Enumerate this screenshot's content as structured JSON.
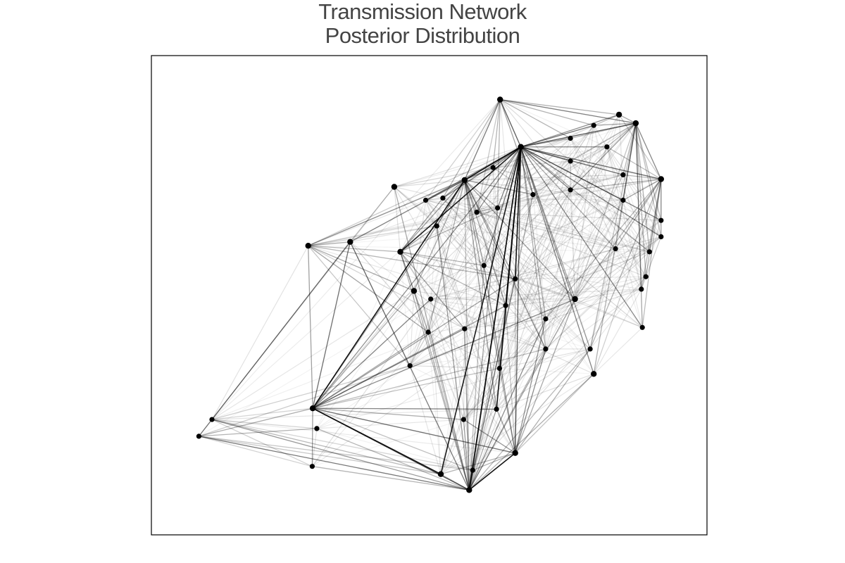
{
  "title": {
    "line1": "Transmission Network",
    "line2": "Posterior Distribution"
  },
  "chart_data": {
    "type": "network",
    "axes": "hidden",
    "grid": false,
    "legend": "none",
    "node_color": "#000000",
    "edge_color": "#000000",
    "x_range": [
      0,
      100
    ],
    "y_range": [
      0,
      100
    ],
    "nodes": [
      {
        "id": 1,
        "x": 64.0,
        "y": 95.5
      },
      {
        "id": 2,
        "x": 87.5,
        "y": 92.0
      },
      {
        "id": 3,
        "x": 90.8,
        "y": 90.0
      },
      {
        "id": 4,
        "x": 82.5,
        "y": 89.5
      },
      {
        "id": 5,
        "x": 77.9,
        "y": 86.5
      },
      {
        "id": 6,
        "x": 68.1,
        "y": 84.5
      },
      {
        "id": 7,
        "x": 85.1,
        "y": 84.5
      },
      {
        "id": 8,
        "x": 77.9,
        "y": 81.2
      },
      {
        "id": 9,
        "x": 62.6,
        "y": 79.7
      },
      {
        "id": 10,
        "x": 88.3,
        "y": 78.0
      },
      {
        "id": 11,
        "x": 95.8,
        "y": 77.0
      },
      {
        "id": 12,
        "x": 57.0,
        "y": 76.8
      },
      {
        "id": 13,
        "x": 43.1,
        "y": 75.2
      },
      {
        "id": 14,
        "x": 77.9,
        "y": 74.5
      },
      {
        "id": 15,
        "x": 70.5,
        "y": 73.4
      },
      {
        "id": 16,
        "x": 52.7,
        "y": 72.6
      },
      {
        "id": 17,
        "x": 49.3,
        "y": 72.1
      },
      {
        "id": 18,
        "x": 88.3,
        "y": 72.1
      },
      {
        "id": 19,
        "x": 63.5,
        "y": 70.3
      },
      {
        "id": 20,
        "x": 59.4,
        "y": 69.3
      },
      {
        "id": 21,
        "x": 95.8,
        "y": 67.4
      },
      {
        "id": 22,
        "x": 51.5,
        "y": 66.1
      },
      {
        "id": 23,
        "x": 95.8,
        "y": 63.6
      },
      {
        "id": 24,
        "x": 34.4,
        "y": 62.4
      },
      {
        "id": 25,
        "x": 26.1,
        "y": 61.5
      },
      {
        "id": 26,
        "x": 86.8,
        "y": 60.8
      },
      {
        "id": 27,
        "x": 44.3,
        "y": 60.1
      },
      {
        "id": 28,
        "x": 93.5,
        "y": 60.1
      },
      {
        "id": 29,
        "x": 60.8,
        "y": 56.9
      },
      {
        "id": 30,
        "x": 92.8,
        "y": 54.3
      },
      {
        "id": 31,
        "x": 67.0,
        "y": 53.8
      },
      {
        "id": 32,
        "x": 91.9,
        "y": 51.4
      },
      {
        "id": 33,
        "x": 47.0,
        "y": 51.0
      },
      {
        "id": 34,
        "x": 50.3,
        "y": 49.1
      },
      {
        "id": 35,
        "x": 78.8,
        "y": 49.1
      },
      {
        "id": 36,
        "x": 65.1,
        "y": 47.6
      },
      {
        "id": 37,
        "x": 73.0,
        "y": 44.5
      },
      {
        "id": 38,
        "x": 57.0,
        "y": 42.2
      },
      {
        "id": 39,
        "x": 49.8,
        "y": 41.4
      },
      {
        "id": 40,
        "x": 92.1,
        "y": 42.5
      },
      {
        "id": 41,
        "x": 73.0,
        "y": 37.5
      },
      {
        "id": 42,
        "x": 81.8,
        "y": 37.5
      },
      {
        "id": 43,
        "x": 46.2,
        "y": 33.6
      },
      {
        "id": 44,
        "x": 63.9,
        "y": 33.0
      },
      {
        "id": 45,
        "x": 82.5,
        "y": 31.7
      },
      {
        "id": 46,
        "x": 27.0,
        "y": 23.7
      },
      {
        "id": 47,
        "x": 63.3,
        "y": 23.5
      },
      {
        "id": 48,
        "x": 56.8,
        "y": 21.1
      },
      {
        "id": 49,
        "x": 7.1,
        "y": 21.1
      },
      {
        "id": 50,
        "x": 27.8,
        "y": 19.0
      },
      {
        "id": 51,
        "x": 4.5,
        "y": 17.2
      },
      {
        "id": 52,
        "x": 67.0,
        "y": 13.3
      },
      {
        "id": 53,
        "x": 26.9,
        "y": 10.2
      },
      {
        "id": 54,
        "x": 58.6,
        "y": 9.3
      },
      {
        "id": 55,
        "x": 52.3,
        "y": 8.4
      },
      {
        "id": 56,
        "x": 57.9,
        "y": 4.7
      }
    ]
  }
}
